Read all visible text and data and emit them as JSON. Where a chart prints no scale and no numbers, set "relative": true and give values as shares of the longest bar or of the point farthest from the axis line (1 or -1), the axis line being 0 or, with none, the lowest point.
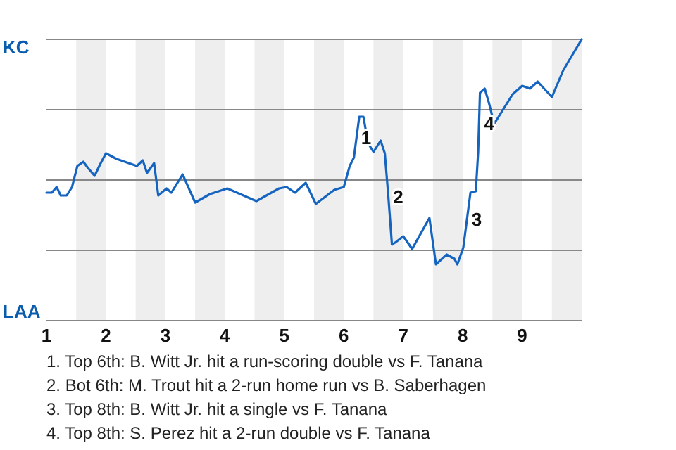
{
  "chart_data": {
    "type": "line",
    "relative": true,
    "grid": "y",
    "marker": "none",
    "line_style": "solid",
    "xlim": [
      1,
      10
    ],
    "xticks": [
      1,
      2,
      3,
      4,
      5,
      6,
      7,
      8,
      9
    ],
    "bands": [
      {
        "axis": "x",
        "from": 1.5,
        "to": 2,
        "color": "#eeeeee"
      },
      {
        "axis": "x",
        "from": 2.5,
        "to": 3,
        "color": "#eeeeee"
      },
      {
        "axis": "x",
        "from": 3.5,
        "to": 4,
        "color": "#eeeeee"
      },
      {
        "axis": "x",
        "from": 4.5,
        "to": 5,
        "color": "#eeeeee"
      },
      {
        "axis": "x",
        "from": 5.5,
        "to": 6,
        "color": "#eeeeee"
      },
      {
        "axis": "x",
        "from": 6.5,
        "to": 7,
        "color": "#eeeeee"
      },
      {
        "axis": "x",
        "from": 7.5,
        "to": 8,
        "color": "#eeeeee"
      },
      {
        "axis": "x",
        "from": 8.5,
        "to": 9,
        "color": "#eeeeee"
      },
      {
        "axis": "x",
        "from": 9.5,
        "to": 10,
        "color": "#eeeeee"
      }
    ],
    "series": [
      {
        "color": "#1565c0",
        "x": [
          1.0,
          1.09,
          1.17,
          1.24,
          1.34,
          1.43,
          1.52,
          1.62,
          1.69,
          1.81,
          1.9,
          2.0,
          2.18,
          2.52,
          2.62,
          2.69,
          2.81,
          2.88,
          3.02,
          3.1,
          3.29,
          3.5,
          3.75,
          4.04,
          4.53,
          4.91,
          5.04,
          5.18,
          5.36,
          5.53,
          5.84,
          6.0,
          6.1,
          6.17,
          6.26,
          6.33,
          6.41,
          6.5,
          6.62,
          6.69,
          6.75,
          6.81,
          6.88,
          7.0,
          7.15,
          7.44,
          7.55,
          7.73,
          7.86,
          7.91,
          8.01,
          8.13,
          8.22,
          8.26,
          8.29,
          8.37,
          8.44,
          8.53,
          8.84,
          9.0,
          9.13,
          9.26,
          9.5,
          9.69,
          10.0
        ],
        "values": [
          0.455,
          0.455,
          0.475,
          0.445,
          0.445,
          0.475,
          0.55,
          0.565,
          0.545,
          0.515,
          0.555,
          0.595,
          0.575,
          0.55,
          0.57,
          0.525,
          0.56,
          0.445,
          0.47,
          0.455,
          0.52,
          0.42,
          0.45,
          0.47,
          0.425,
          0.47,
          0.475,
          0.455,
          0.49,
          0.415,
          0.465,
          0.475,
          0.55,
          0.58,
          0.725,
          0.725,
          0.63,
          0.6,
          0.64,
          0.595,
          0.44,
          0.27,
          0.28,
          0.3,
          0.255,
          0.365,
          0.2,
          0.235,
          0.22,
          0.2,
          0.26,
          0.455,
          0.46,
          0.6,
          0.81,
          0.825,
          0.775,
          0.7,
          0.805,
          0.835,
          0.825,
          0.85,
          0.795,
          0.89,
          1
        ]
      }
    ],
    "annotations": [
      "KC",
      "LAA",
      {
        "text": "1",
        "x": 6.21,
        "y": 0.65
      },
      {
        "text": "2",
        "x": 6.75,
        "y": 0.44
      },
      {
        "text": "3",
        "x": 8.07,
        "y": 0.36
      },
      {
        "text": "4",
        "x": 8.28,
        "y": 0.7
      },
      "1. Top 6th: B. Witt Jr. hit a run-scoring double vs F. Tanana",
      "2. Bot 6th: M. Trout hit a 2-run home run vs B. Saberhagen",
      "3. Top 8th: B. Witt Jr. hit a single vs F. Tanana",
      "4. Top 8th: S. Perez hit a 2-run double vs F. Tanana"
    ]
  }
}
